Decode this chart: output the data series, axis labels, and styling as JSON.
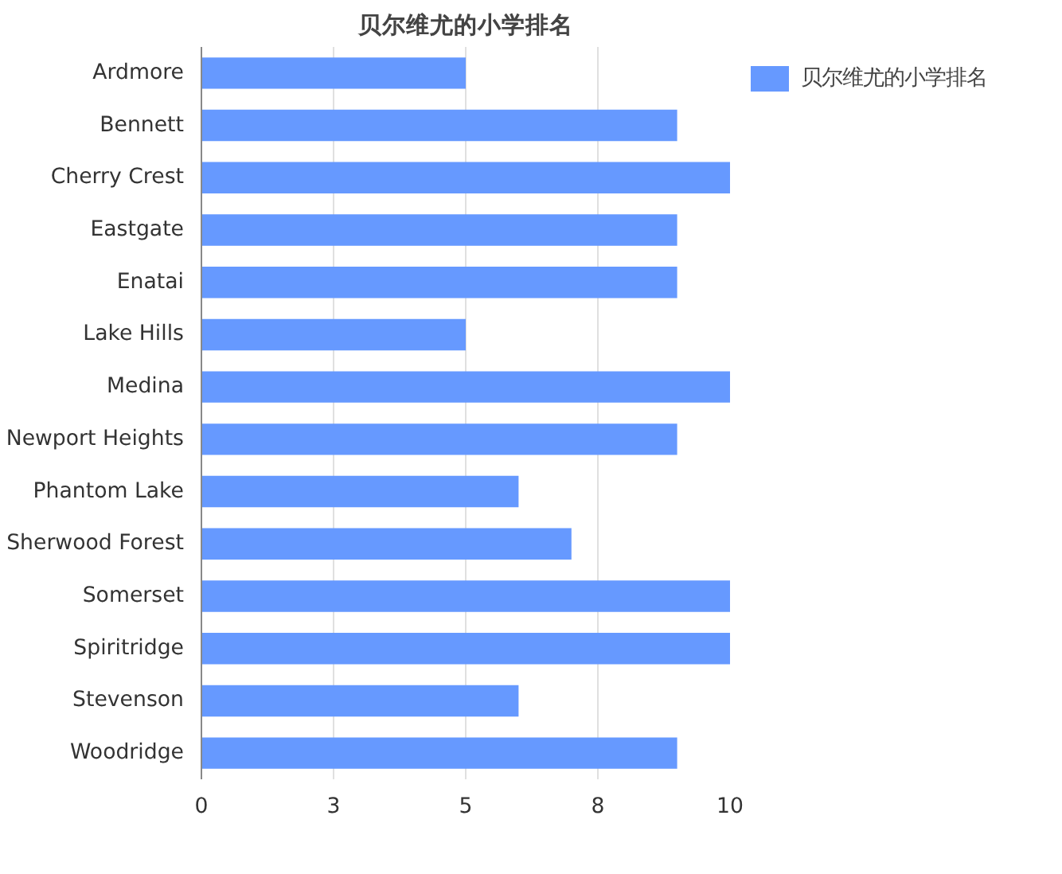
{
  "chart_data": {
    "type": "bar",
    "orientation": "horizontal",
    "title": "贝尔维尤的小学排名",
    "categories": [
      "Ardmore",
      "Bennett",
      "Cherry Crest",
      "Eastgate",
      "Enatai",
      "Lake Hills",
      "Medina",
      "Newport Heights",
      "Phantom Lake",
      "Sherwood Forest",
      "Somerset",
      "Spiritridge",
      "Stevenson",
      "Woodridge"
    ],
    "series": [
      {
        "name": "贝尔维尤的小学排名",
        "color": "#6699ff",
        "values": [
          5,
          9,
          10,
          9,
          9,
          5,
          10,
          9,
          6,
          7,
          10,
          10,
          6,
          9
        ]
      }
    ],
    "xlim": [
      0,
      10
    ],
    "xticks": [
      0,
      {
        "value": 2.5,
        "label": "3"
      },
      5,
      {
        "value": 7.5,
        "label": "8"
      },
      10
    ],
    "grid": "x",
    "legend": "top right"
  }
}
